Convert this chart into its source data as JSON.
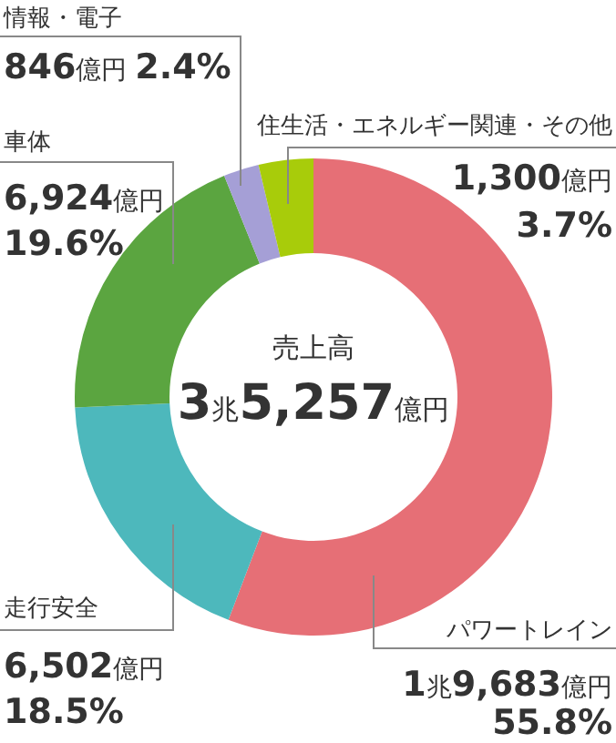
{
  "chart_data": {
    "type": "donut",
    "title": "売上高",
    "subtitle": "3兆5,257億円",
    "categories": [
      "パワートレイン",
      "走行安全",
      "車体",
      "情報・電子",
      "住生活・エネルギー関連・その他"
    ],
    "values": [
      55.8,
      18.5,
      19.6,
      2.4,
      3.7
    ],
    "colors": [
      "#e66f76",
      "#4db8bc",
      "#5ba540",
      "#a59fd6",
      "#a8cc0a"
    ],
    "value_labels": [
      "1兆9,683億円 55.8%",
      "6,502億円 18.5%",
      "6,924億円 19.6%",
      "846億円 2.4%",
      "1,300億円 3.7%"
    ]
  }
}
